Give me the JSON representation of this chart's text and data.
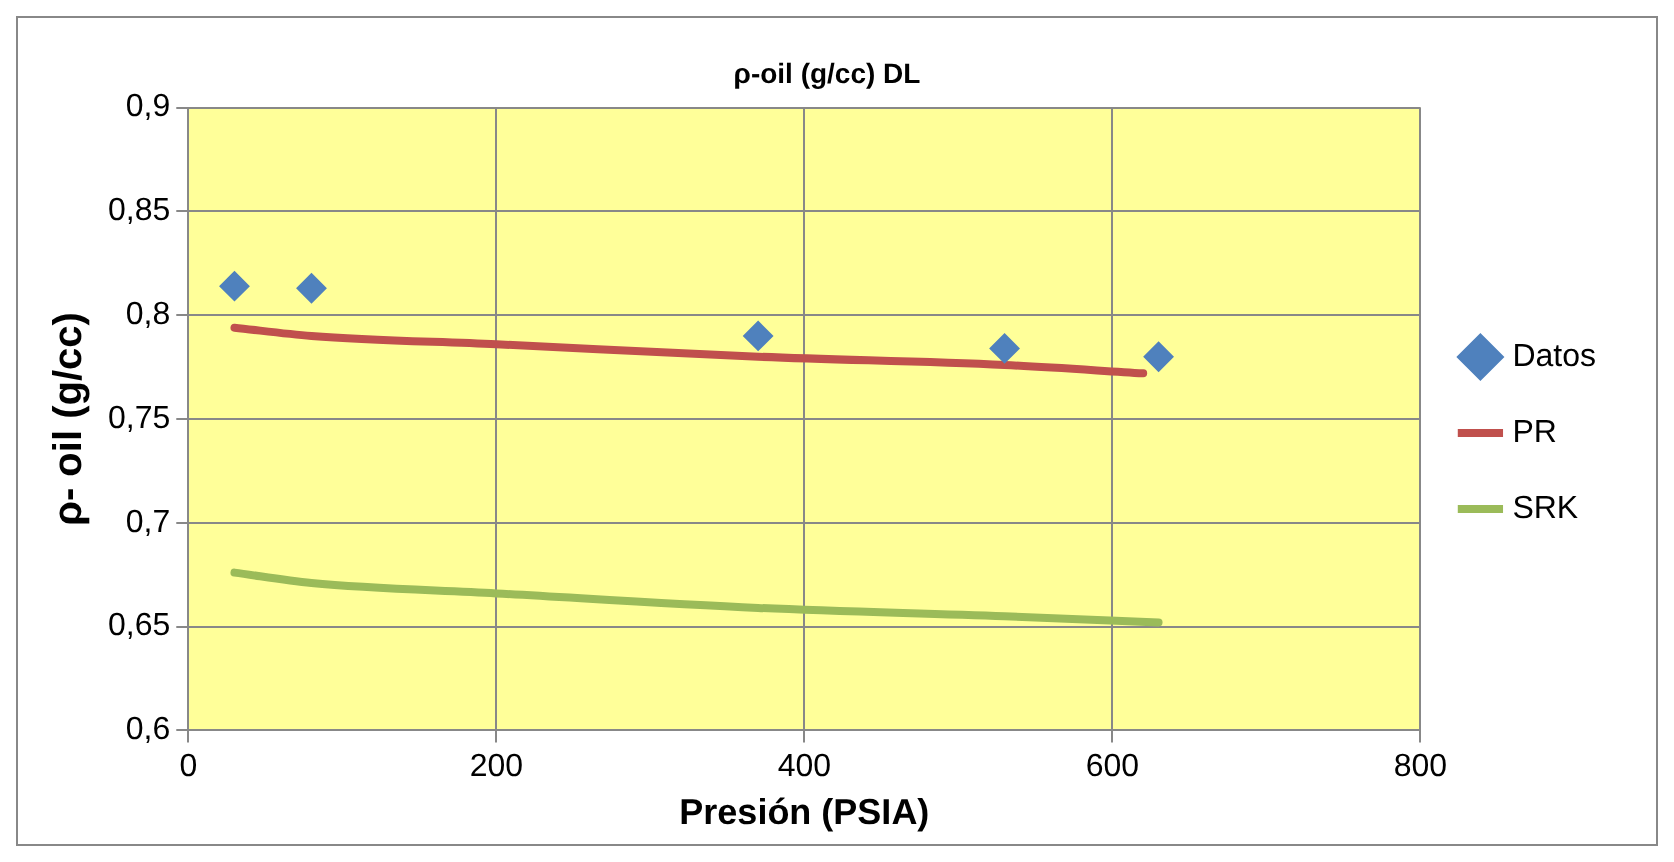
{
  "chart_data": {
    "type": "line",
    "title": "ρ-oil (g/cc) DL",
    "xlabel": "Presión (PSIA)",
    "ylabel": "ρ- oil (g/cc)",
    "series": [
      {
        "name": "Datos",
        "type": "scatter",
        "color": "#4f81bd",
        "marker": "diamond",
        "x": [
          30,
          80,
          370,
          530,
          630
        ],
        "values": [
          0.814,
          0.813,
          0.79,
          0.784,
          0.78
        ]
      },
      {
        "name": "PR",
        "type": "line",
        "color": "#c0504d",
        "x": [
          30,
          80,
          200,
          370,
          530,
          620
        ],
        "values": [
          0.794,
          0.79,
          0.786,
          0.78,
          0.776,
          0.772
        ]
      },
      {
        "name": "SRK",
        "type": "line",
        "color": "#9bbb59",
        "x": [
          30,
          80,
          200,
          370,
          530,
          630
        ],
        "values": [
          0.676,
          0.671,
          0.666,
          0.659,
          0.655,
          0.652
        ]
      }
    ],
    "xlim": [
      0,
      800
    ],
    "xticks": [
      0,
      200,
      400,
      600,
      800
    ],
    "ylim": [
      0.6,
      0.9
    ],
    "yticks": [
      {
        "value": 0.6,
        "label": "0,6"
      },
      {
        "value": 0.65,
        "label": "0,65"
      },
      {
        "value": 0.7,
        "label": "0,7"
      },
      {
        "value": 0.75,
        "label": "0,75"
      },
      {
        "value": 0.8,
        "label": "0,8"
      },
      {
        "value": 0.85,
        "label": "0,85"
      },
      {
        "value": 0.9,
        "label": "0,9"
      }
    ],
    "grid": true,
    "legend": "right"
  }
}
